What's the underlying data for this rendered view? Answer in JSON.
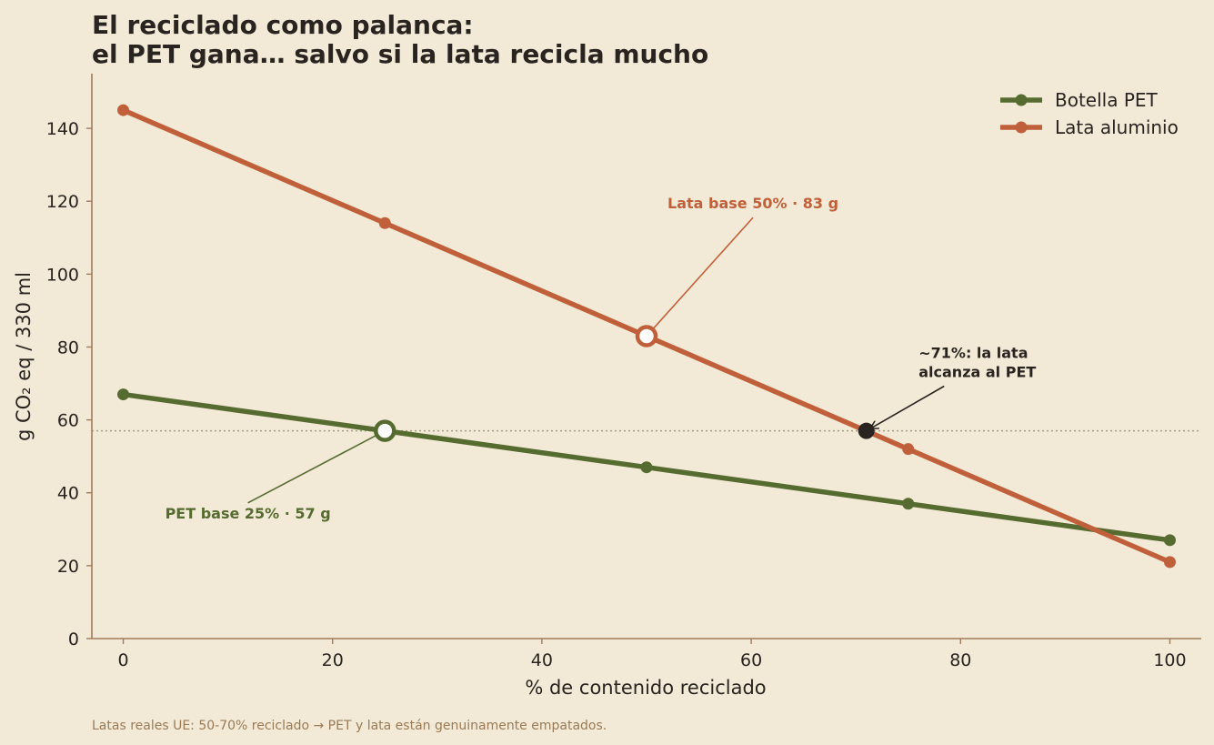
{
  "chart_data": {
    "type": "line",
    "title_line1": "El reciclado como palanca:",
    "title_line2": "el PET gana… salvo si la lata recicla mucho",
    "xlabel": "% de contenido reciclado",
    "ylabel": "g CO₂ eq / 330 ml",
    "xlim": [
      -3,
      103
    ],
    "ylim": [
      0,
      155
    ],
    "xticks": [
      0,
      20,
      40,
      60,
      80,
      100
    ],
    "yticks": [
      0,
      20,
      40,
      60,
      80,
      100,
      120,
      140
    ],
    "grid": false,
    "legend_position": "top-right",
    "reference_line_y": 57,
    "series": [
      {
        "name": "Botella PET",
        "color": "#556b2f",
        "x": [
          0,
          25,
          50,
          75,
          100
        ],
        "y": [
          67,
          57,
          47,
          37,
          27
        ]
      },
      {
        "name": "Lata aluminio",
        "color": "#c0603a",
        "x": [
          0,
          25,
          50,
          75,
          100
        ],
        "y": [
          145,
          114,
          83,
          52,
          21
        ]
      }
    ],
    "highlights": [
      {
        "series": 0,
        "x": 25,
        "y": 57
      },
      {
        "series": 1,
        "x": 50,
        "y": 83
      }
    ],
    "crossing_point": {
      "x": 71,
      "y": 57,
      "color": "#2a2420"
    },
    "annotations": [
      {
        "lines": [
          "Lata base 50% · 83 g"
        ],
        "color": "#c0603a",
        "target": {
          "x": 50,
          "y": 83
        },
        "text_at": {
          "x": 52,
          "y": 118
        },
        "arrow": false
      },
      {
        "lines": [
          "PET base 25% · 57 g"
        ],
        "color": "#556b2f",
        "target": {
          "x": 25,
          "y": 57
        },
        "text_at": {
          "x": 4,
          "y": 33
        },
        "arrow": false
      },
      {
        "lines": [
          "~71%: la lata",
          "alcanza al PET"
        ],
        "color": "#2a2420",
        "target": {
          "x": 71,
          "y": 57
        },
        "text_at": {
          "x": 76,
          "y": 77
        },
        "arrow": true
      }
    ],
    "footnote": "Latas reales UE: 50-70% reciclado → PET y lata están genuinamente empatados."
  }
}
